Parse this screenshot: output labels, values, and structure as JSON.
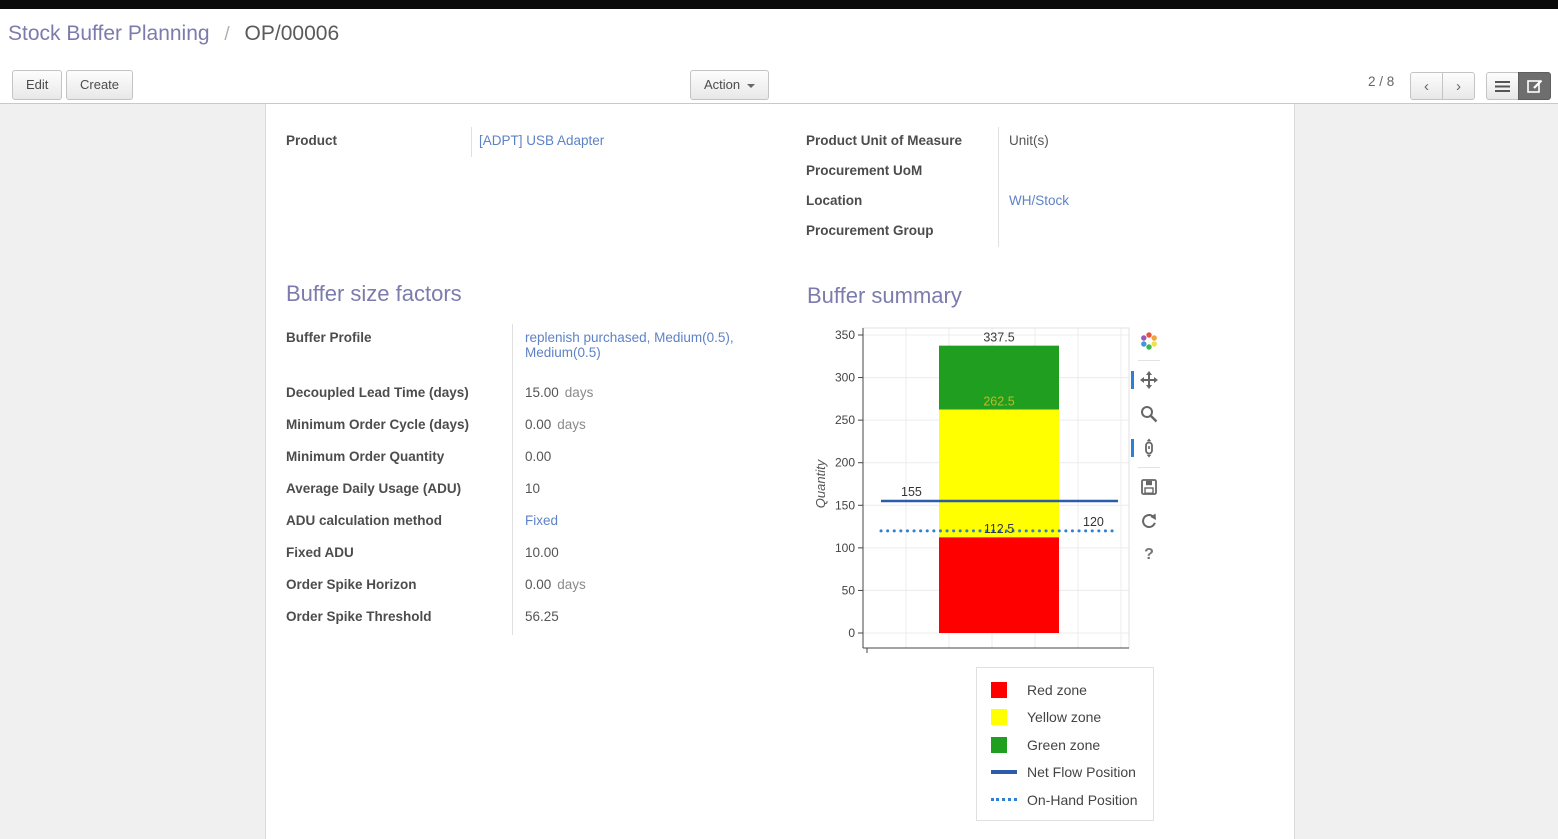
{
  "breadcrumb": {
    "parent": "Stock Buffer Planning",
    "separator": "/",
    "current": "OP/00006"
  },
  "toolbar": {
    "edit": "Edit",
    "create": "Create",
    "action": "Action",
    "pager": "2 / 8"
  },
  "icons": {
    "chevron_left": "‹",
    "chevron_right": "›",
    "help": "?"
  },
  "form": {
    "product": {
      "label": "Product",
      "value": "[ADPT] USB Adapter"
    },
    "right_fields": [
      {
        "label": "Product Unit of Measure",
        "value": "Unit(s)"
      },
      {
        "label": "Procurement UoM",
        "value": ""
      },
      {
        "label": "Location",
        "value": "WH/Stock"
      },
      {
        "label": "Procurement Group",
        "value": ""
      }
    ]
  },
  "buffer_factors": {
    "title": "Buffer size factors",
    "rows": [
      {
        "label": "Buffer Profile",
        "value": "replenish purchased, Medium(0.5), Medium(0.5)",
        "suffix": ""
      },
      {
        "label": "Decoupled Lead Time (days)",
        "value": "15.00",
        "suffix": "days"
      },
      {
        "label": "Minimum Order Cycle (days)",
        "value": "0.00",
        "suffix": "days"
      },
      {
        "label": "Minimum Order Quantity",
        "value": "0.00",
        "suffix": ""
      },
      {
        "label": "Average Daily Usage (ADU)",
        "value": "10",
        "suffix": ""
      },
      {
        "label": "ADU calculation method",
        "value": "Fixed",
        "suffix": ""
      },
      {
        "label": "Fixed ADU",
        "value": "10.00",
        "suffix": ""
      },
      {
        "label": "Order Spike Horizon",
        "value": "0.00",
        "suffix": "days"
      },
      {
        "label": "Order Spike Threshold",
        "value": "56.25",
        "suffix": ""
      }
    ]
  },
  "buffer_summary": {
    "title": "Buffer summary"
  },
  "chart_data": {
    "type": "bar",
    "title": "",
    "xlabel": "",
    "ylabel": "Quantity",
    "ylim": [
      0,
      350
    ],
    "yticks": [
      0,
      50,
      100,
      150,
      200,
      250,
      300,
      350
    ],
    "grid": true,
    "legend_position": "below-right",
    "bar": {
      "zones": [
        {
          "name": "Red zone",
          "from": 0,
          "to": 112.5,
          "color": "#ff0000",
          "top_label": "112.5",
          "top_label_color": "#3a3a3a"
        },
        {
          "name": "Yellow zone",
          "from": 112.5,
          "to": 262.5,
          "color": "#ffff00",
          "top_label": "262.5",
          "top_label_color": "#b8bc2a"
        },
        {
          "name": "Green zone",
          "from": 262.5,
          "to": 337.5,
          "color": "#1f9e1f",
          "top_label": "337.5",
          "top_label_color": "#3a3a3a"
        }
      ]
    },
    "lines": [
      {
        "name": "Net Flow Position",
        "value": 155,
        "label": "155",
        "style": "solid",
        "color": "#2a5caa"
      },
      {
        "name": "On-Hand Position",
        "value": 120,
        "label": "120",
        "style": "dotted",
        "color": "#2f7fd4"
      }
    ],
    "legend": [
      {
        "label": "Red zone",
        "type": "rect",
        "color": "#ff0000"
      },
      {
        "label": "Yellow zone",
        "type": "rect",
        "color": "#ffff00"
      },
      {
        "label": "Green zone",
        "type": "rect",
        "color": "#1f9e1f"
      },
      {
        "label": "Net Flow Position",
        "type": "line",
        "color": "#2a5caa"
      },
      {
        "label": "On-Hand Position",
        "type": "dotted",
        "color": "#2f7fd4"
      }
    ]
  }
}
